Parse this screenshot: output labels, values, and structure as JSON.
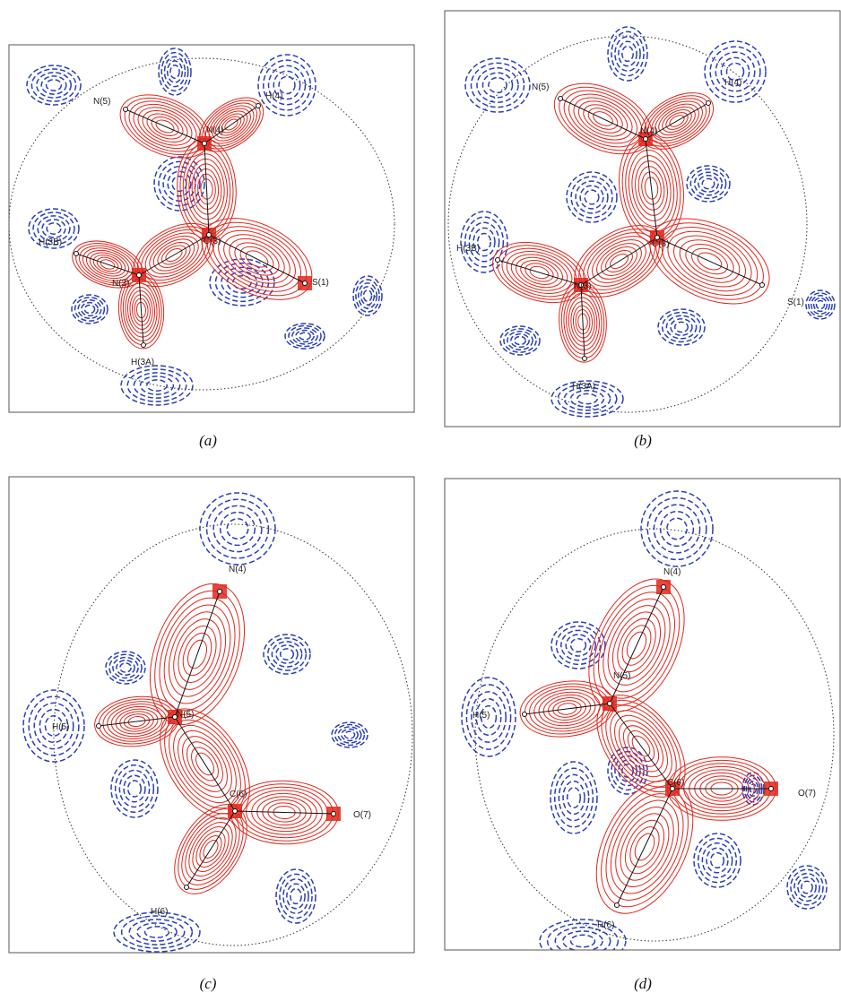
{
  "panels": [
    {
      "label": "(a)",
      "atoms": [
        "N(5)",
        "H(4)",
        "N(4)",
        "H(3B)",
        "C(3)",
        "N(3)",
        "S(1)",
        "H(3A)"
      ]
    },
    {
      "label": "(b)",
      "atoms": [
        "N(5)",
        "H(4)",
        "N(4)",
        "H(3B)",
        "C(3)",
        "N(3)",
        "S(1)",
        "H(3A)"
      ]
    },
    {
      "label": "(c)",
      "atoms": [
        "N(4)",
        "H(5)",
        "N(5)",
        "C(6)",
        "O(7)",
        "H(6)"
      ]
    },
    {
      "label": "(d)",
      "atoms": [
        "N(4)",
        "H(5)",
        "N(5)",
        "C(6)",
        "O(7)",
        "H(6)"
      ]
    }
  ]
}
